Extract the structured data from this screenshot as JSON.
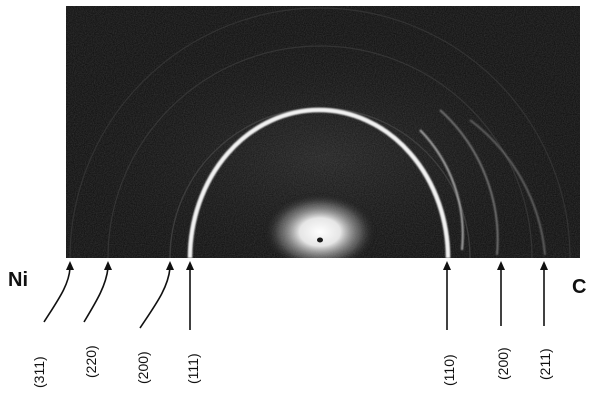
{
  "labels": {
    "left_side": "Ni",
    "right_side": "C"
  },
  "left_rings": [
    {
      "index": "(311)"
    },
    {
      "index": "(220)"
    },
    {
      "index": "(200)"
    },
    {
      "index": "(111)"
    }
  ],
  "right_rings": [
    {
      "index": "(110)"
    },
    {
      "index": "(200)"
    },
    {
      "index": "(211)"
    }
  ],
  "colors": {
    "background": "#ffffff",
    "pattern_background": "#0a0a0a",
    "ring": "#f2f2f2",
    "annotation": "#111111"
  }
}
